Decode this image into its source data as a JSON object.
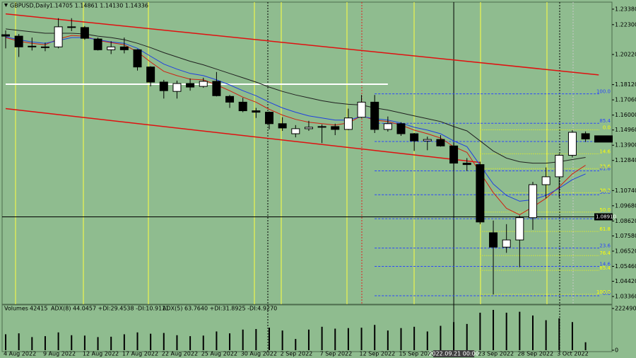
{
  "header": {
    "symbol": "GBPUSD,Daily",
    "quote": "1.14705 1.14861 1.14130 1.14336"
  },
  "chart_data": [
    {
      "type": "candlestick",
      "categories": [
        "4 Aug 2022",
        null,
        null,
        "9 Aug 2022",
        null,
        null,
        "12 Aug 2022",
        null,
        null,
        "17 Aug 2022",
        null,
        null,
        "22 Aug 2022",
        null,
        null,
        "25 Aug 2022",
        null,
        null,
        "30 Aug 2022",
        null,
        null,
        "2 Sep 2022",
        null,
        null,
        "7 Sep 2022",
        null,
        null,
        "12 Sep 2022",
        null,
        null,
        "15 Sep 2022",
        null,
        null,
        null,
        "2022.09.21 00:00",
        null,
        "23 Sep 2022",
        null,
        null,
        "28 Sep 2022",
        null,
        null,
        "3 Oct 2022",
        null,
        null
      ],
      "highlighted_category": 34,
      "open": [
        1.216,
        1.215,
        1.208,
        1.2075,
        1.2075,
        1.2215,
        1.221,
        1.213,
        1.2055,
        1.2075,
        1.2055,
        1.1935,
        1.183,
        1.1765,
        1.182,
        1.18,
        1.1835,
        1.173,
        1.169,
        1.163,
        1.162,
        1.154,
        1.147,
        1.1505,
        1.1515,
        1.152,
        1.15,
        1.1585,
        1.169,
        1.15,
        1.154,
        1.147,
        1.142,
        1.143,
        1.1385,
        1.1265,
        1.1255,
        1.078,
        1.068,
        1.073,
        1.0885,
        1.1115,
        1.117,
        1.132,
        1.14705
      ],
      "high": [
        1.219,
        1.2165,
        1.214,
        1.2105,
        1.2275,
        1.2275,
        1.222,
        1.214,
        1.2115,
        1.214,
        1.206,
        1.194,
        1.1845,
        1.184,
        1.1855,
        1.186,
        1.19,
        1.174,
        1.172,
        1.165,
        1.1625,
        1.1585,
        1.153,
        1.156,
        1.1535,
        1.154,
        1.1645,
        1.174,
        1.174,
        1.159,
        1.155,
        1.1475,
        1.145,
        1.146,
        1.1405,
        1.13,
        1.1275,
        1.0865,
        1.084,
        1.09,
        1.1135,
        1.1235,
        1.133,
        1.1495,
        1.14861
      ],
      "low": [
        1.2065,
        1.2005,
        1.205,
        1.2045,
        1.2065,
        1.2185,
        1.2125,
        1.205,
        1.2025,
        1.203,
        1.191,
        1.18,
        1.1715,
        1.1715,
        1.177,
        1.179,
        1.173,
        1.165,
        1.162,
        1.158,
        1.15,
        1.149,
        1.1445,
        1.149,
        1.1405,
        1.146,
        1.1495,
        1.158,
        1.1475,
        1.1485,
        1.1455,
        1.135,
        1.1355,
        1.138,
        1.121,
        1.121,
        1.084,
        1.035,
        1.064,
        1.054,
        1.08,
        1.102,
        1.1025,
        1.1305,
        1.1413
      ],
      "close": [
        1.215,
        1.2075,
        1.2075,
        1.207,
        1.2215,
        1.221,
        1.2135,
        1.2055,
        1.2075,
        1.2055,
        1.1935,
        1.183,
        1.177,
        1.182,
        1.1795,
        1.1835,
        1.1735,
        1.169,
        1.163,
        1.162,
        1.154,
        1.151,
        1.1505,
        1.1515,
        1.152,
        1.15,
        1.158,
        1.169,
        1.15,
        1.154,
        1.147,
        1.142,
        1.143,
        1.1385,
        1.1265,
        1.1255,
        1.0855,
        1.068,
        1.073,
        1.0885,
        1.1115,
        1.117,
        1.132,
        1.148,
        1.14336
      ],
      "up_color": "#ffffff",
      "down_color": "#000000",
      "ylim": [
        1.0282,
        1.2387
      ],
      "yticks": [
        {
          "value": 1.0336,
          "label": "1.03360"
        },
        {
          "value": 1.0442,
          "label": "1.04420"
        },
        {
          "value": 1.0546,
          "label": "1.05460"
        },
        {
          "value": 1.0652,
          "label": "1.06520"
        },
        {
          "value": 1.0758,
          "label": "1.07580"
        },
        {
          "value": 1.0862,
          "label": "1.08620"
        },
        {
          "value": 1.0968,
          "label": "1.09680"
        },
        {
          "value": 1.1074,
          "label": "1.10740"
        },
        {
          "value": 1.1284,
          "label": "1.12840"
        },
        {
          "value": 1.139,
          "label": "1.13900"
        },
        {
          "value": 1.1496,
          "label": "1.14960"
        },
        {
          "value": 1.16,
          "label": "1.16000"
        },
        {
          "value": 1.1706,
          "label": "1.17060"
        },
        {
          "value": 1.1812,
          "label": "1.18120"
        },
        {
          "value": 1.2022,
          "label": "1.20220"
        },
        {
          "value": 1.223,
          "label": "1.22300"
        },
        {
          "value": 1.2338,
          "label": "1.23380"
        }
      ],
      "overlays": [
        {
          "color": "#d02010",
          "values": [
            1.214,
            1.2115,
            1.21,
            1.209,
            1.213,
            1.2155,
            1.215,
            1.212,
            1.2105,
            1.209,
            1.204,
            1.197,
            1.1905,
            1.1875,
            1.185,
            1.1845,
            1.181,
            1.177,
            1.1725,
            1.169,
            1.164,
            1.16,
            1.157,
            1.155,
            1.154,
            1.153,
            1.1545,
            1.1595,
            1.1565,
            1.1555,
            1.153,
            1.1495,
            1.147,
            1.144,
            1.138,
            1.134,
            1.12,
            1.106,
            1.095,
            1.0905,
            1.096,
            1.102,
            1.11,
            1.119,
            1.125
          ]
        },
        {
          "color": "#2040e0",
          "values": [
            1.2145,
            1.2125,
            1.211,
            1.21,
            1.212,
            1.214,
            1.214,
            1.2125,
            1.211,
            1.21,
            1.2065,
            1.201,
            1.1955,
            1.192,
            1.189,
            1.1875,
            1.1845,
            1.181,
            1.177,
            1.1735,
            1.169,
            1.165,
            1.162,
            1.1595,
            1.158,
            1.1565,
            1.1565,
            1.159,
            1.1575,
            1.1565,
            1.1545,
            1.1515,
            1.1495,
            1.147,
            1.142,
            1.138,
            1.125,
            1.112,
            1.104,
            1.1,
            1.101,
            1.104,
            1.109,
            1.115,
            1.119
          ]
        },
        {
          "color": "#202020",
          "values": [
            1.22,
            1.219,
            1.218,
            1.217,
            1.217,
            1.217,
            1.2165,
            1.215,
            1.214,
            1.2125,
            1.21,
            1.207,
            1.2035,
            1.2005,
            1.1975,
            1.195,
            1.192,
            1.189,
            1.186,
            1.183,
            1.1795,
            1.1765,
            1.174,
            1.172,
            1.17,
            1.1685,
            1.1675,
            1.167,
            1.165,
            1.1635,
            1.1615,
            1.1595,
            1.1575,
            1.1555,
            1.152,
            1.149,
            1.142,
            1.135,
            1.13,
            1.1275,
            1.1265,
            1.1265,
            1.1275,
            1.129,
            1.1305
          ]
        }
      ],
      "trend_lines": [
        {
          "color": "#e01010",
          "x": [
            0,
            45
          ],
          "y": [
            1.2305,
            1.188
          ]
        },
        {
          "color": "#e01010",
          "x": [
            0,
            36
          ],
          "y": [
            1.1645,
            1.127
          ]
        }
      ],
      "levels": [
        {
          "value": 1.1815,
          "color": "#ffffff",
          "x": [
            0,
            29
          ]
        },
        {
          "value": 1.0891,
          "color": "#000000",
          "label": "1.08910"
        }
      ],
      "fibs": [
        {
          "color": "#2a44ff",
          "start": 28,
          "levels": [
            {
              "label": "100.0",
              "value": 1.1748
            },
            {
              "label": "85.4",
              "value": 1.1543
            },
            {
              "label": "76.4",
              "value": 1.1416
            },
            {
              "label": "61.8",
              "value": 1.1211
            },
            {
              "label": "50.0",
              "value": 1.1045
            },
            {
              "label": "38.2",
              "value": 1.0878
            },
            {
              "label": "23.6",
              "value": 1.0673
            },
            {
              "label": "14.6",
              "value": 1.0546
            },
            {
              "label": "0.0",
              "value": 1.0341
            }
          ]
        },
        {
          "color": "#ffff00",
          "start": 36,
          "levels": [
            {
              "label": "0.0",
              "value": 1.1497
            },
            {
              "label": "14.6",
              "value": 1.133
            },
            {
              "label": "23.6",
              "value": 1.1227
            },
            {
              "label": "38.2",
              "value": 1.1059
            },
            {
              "label": "50.0",
              "value": 1.0924
            },
            {
              "label": "61.8",
              "value": 1.0789
            },
            {
              "label": "76.4",
              "value": 1.0621
            },
            {
              "label": "85.4",
              "value": 1.0518
            },
            {
              "label": "100.0",
              "value": 1.0351
            }
          ]
        }
      ]
    },
    {
      "type": "volume",
      "title": "Volumes",
      "values": [
        85000,
        90000,
        70000,
        75000,
        95000,
        80000,
        78000,
        70000,
        72000,
        85000,
        95000,
        88000,
        92000,
        80000,
        75000,
        78000,
        100000,
        90000,
        110000,
        113000,
        120000,
        105000,
        60000,
        110000,
        125000,
        115000,
        118000,
        120000,
        135000,
        105000,
        118000,
        125000,
        100000,
        130000,
        150000,
        140000,
        200000,
        215000,
        200000,
        205000,
        185000,
        160000,
        170000,
        150000,
        42415
      ],
      "color": "#000000",
      "ylim": [
        0,
        222490
      ],
      "yticks": [
        0,
        222490
      ],
      "texts": [
        "ADX(8) 44.0457 +DI:29.4538 -DI:10.9111",
        "ADX(5) 63.7640 +DI:31.8925 -DI:4.9270"
      ]
    }
  ]
}
